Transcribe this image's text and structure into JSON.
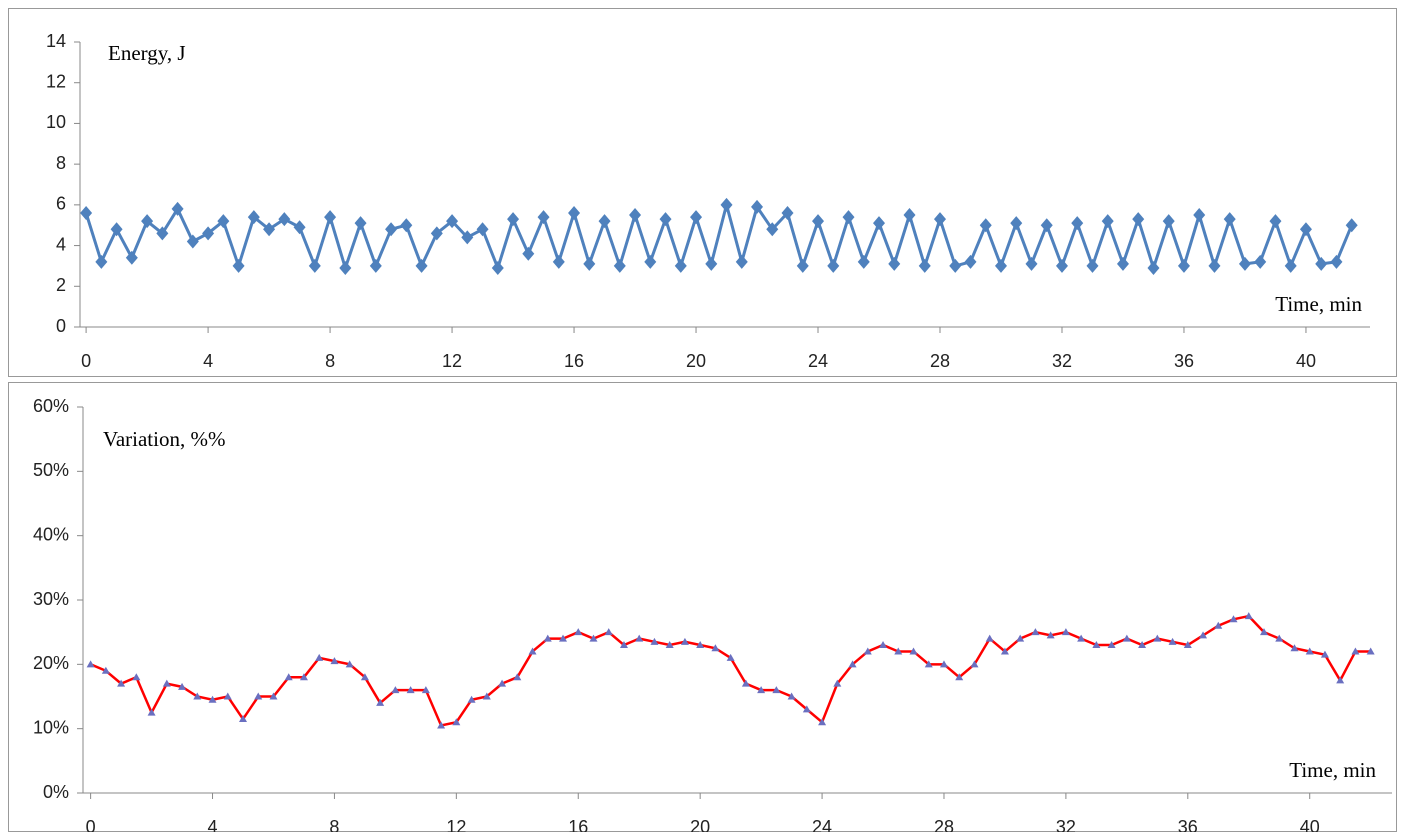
{
  "chart_data": [
    {
      "type": "line",
      "ylabel": "Energy, J",
      "xlabel": "Time, min",
      "x": [
        0,
        0.5,
        1,
        1.5,
        2,
        2.5,
        3,
        3.5,
        4,
        4.5,
        5,
        5.5,
        6,
        6.5,
        7,
        7.5,
        8,
        8.5,
        9,
        9.5,
        10,
        10.5,
        11,
        11.5,
        12,
        12.5,
        13,
        13.5,
        14,
        14.5,
        15,
        15.5,
        16,
        16.5,
        17,
        17.5,
        18,
        18.5,
        19,
        19.5,
        20,
        20.5,
        21,
        21.5,
        22,
        22.5,
        23,
        23.5,
        24,
        24.5,
        25,
        25.5,
        26,
        26.5,
        27,
        27.5,
        28,
        28.5,
        29,
        29.5,
        30,
        30.5,
        31,
        31.5,
        32,
        32.5,
        33,
        33.5,
        34,
        34.5,
        35,
        35.5,
        36,
        36.5,
        37,
        37.5,
        38,
        38.5,
        39,
        39.5,
        40,
        40.5,
        41,
        41.5
      ],
      "values": [
        5.6,
        3.2,
        4.8,
        3.4,
        5.2,
        4.6,
        5.8,
        4.2,
        4.6,
        5.2,
        3.0,
        5.4,
        4.8,
        5.3,
        4.9,
        3.0,
        5.4,
        2.9,
        5.1,
        3.0,
        4.8,
        5.0,
        3.0,
        4.6,
        5.2,
        4.4,
        4.8,
        2.9,
        5.3,
        3.6,
        5.4,
        3.2,
        5.6,
        3.1,
        5.2,
        3.0,
        5.5,
        3.2,
        5.3,
        3.0,
        5.4,
        3.1,
        6.0,
        3.2,
        5.9,
        4.8,
        5.6,
        3.0,
        5.2,
        3.0,
        5.4,
        3.2,
        5.1,
        3.1,
        5.5,
        3.0,
        5.3,
        3.0,
        3.2,
        5.0,
        3.0,
        5.1,
        3.1,
        5.0,
        3.0,
        5.1,
        3.0,
        5.2,
        3.1,
        5.3,
        2.9,
        5.2,
        3.0,
        5.5,
        3.0,
        5.3,
        3.1,
        3.2,
        5.2,
        3.0,
        4.8,
        3.1,
        3.2,
        5.0
      ],
      "color": "#4f81bd",
      "marker": "diamond",
      "xlim": [
        -0.2,
        42.1
      ],
      "ylim": [
        0,
        14
      ],
      "xticks": [
        0,
        4,
        8,
        12,
        16,
        20,
        24,
        28,
        32,
        36,
        40
      ],
      "yticks": [
        0,
        2,
        4,
        6,
        8,
        10,
        12,
        14
      ],
      "grid": false
    },
    {
      "type": "line",
      "ylabel": "Variation, %%",
      "xlabel": "Time, min",
      "x": [
        0,
        0.5,
        1,
        1.5,
        2,
        2.5,
        3,
        3.5,
        4,
        4.5,
        5,
        5.5,
        6,
        6.5,
        7,
        7.5,
        8,
        8.5,
        9,
        9.5,
        10,
        10.5,
        11,
        11.5,
        12,
        12.5,
        13,
        13.5,
        14,
        14.5,
        15,
        15.5,
        16,
        16.5,
        17,
        17.5,
        18,
        18.5,
        19,
        19.5,
        20,
        20.5,
        21,
        21.5,
        22,
        22.5,
        23,
        23.5,
        24,
        24.5,
        25,
        25.5,
        26,
        26.5,
        27,
        27.5,
        28,
        28.5,
        29,
        29.5,
        30,
        30.5,
        31,
        31.5,
        32,
        32.5,
        33,
        33.5,
        34,
        34.5,
        35,
        35.5,
        36,
        36.5,
        37,
        37.5,
        38,
        38.5,
        39,
        39.5,
        40,
        40.5,
        41,
        41.5,
        42
      ],
      "values": [
        20,
        19,
        17,
        18,
        12.5,
        17,
        16.5,
        15,
        14.5,
        15,
        11.5,
        15,
        15,
        18,
        18,
        21,
        20.5,
        20,
        18,
        14,
        16,
        16,
        16,
        10.5,
        11,
        14.5,
        15,
        17,
        18,
        22,
        24,
        24,
        25,
        24,
        25,
        23,
        24,
        23.5,
        23,
        23.5,
        23,
        22.5,
        21,
        17,
        16,
        16,
        15,
        13,
        11,
        17,
        20,
        22,
        23,
        22,
        22,
        20,
        20,
        18,
        20,
        24,
        22,
        24,
        25,
        24.5,
        25,
        24,
        23,
        23,
        24,
        23,
        24,
        23.5,
        23,
        24.5,
        26,
        27,
        27.5,
        25,
        24,
        22.5,
        22,
        21.5,
        17.5,
        22,
        22
      ],
      "color": "#ff0000",
      "marker": "triangle",
      "marker_color": "#6a6fc0",
      "xlim": [
        -0.25,
        42.7
      ],
      "ylim": [
        0,
        60
      ],
      "xticks": [
        0,
        4,
        8,
        12,
        16,
        20,
        24,
        28,
        32,
        36,
        40
      ],
      "yticks": [
        {
          "value": 0,
          "label": "0%"
        },
        {
          "value": 10,
          "label": "10%"
        },
        {
          "value": 20,
          "label": "20%"
        },
        {
          "value": 30,
          "label": "30%"
        },
        {
          "value": 40,
          "label": "40%"
        },
        {
          "value": 50,
          "label": "50%"
        },
        {
          "value": 60,
          "label": "60%"
        }
      ],
      "grid": false
    }
  ]
}
